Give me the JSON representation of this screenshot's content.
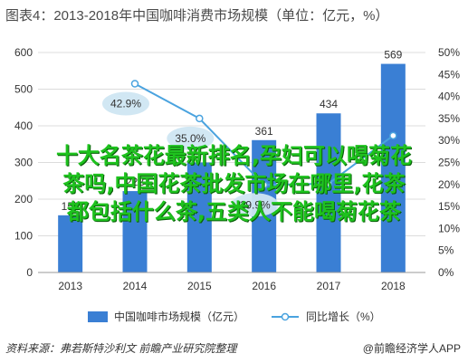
{
  "title": "图表4：2013-2018年中国咖啡消费市场规模（单位：亿元，%）",
  "chart_data": {
    "type": "bar+line",
    "categories": [
      "2013",
      "2014",
      "2015",
      "2016",
      "2017",
      "2018"
    ],
    "series": [
      {
        "name": "中国咖啡市场规模（亿元）",
        "type": "bar",
        "axis": "left",
        "values": [
          156,
          222,
          300,
          361,
          434,
          569
        ],
        "labels": [
          "156",
          "222",
          "",
          "361",
          "434",
          "569"
        ],
        "color": "#3a7fd4"
      },
      {
        "name": "同比增长（%）",
        "type": "line",
        "axis": "right",
        "values": [
          null,
          42.9,
          35.0,
          19.9,
          20.2,
          31.1
        ],
        "labels": [
          "",
          "42.9%",
          "35.0%",
          "19.9%",
          "",
          ""
        ],
        "color": "#4aa3df"
      }
    ],
    "y_left": {
      "min": 0,
      "max": 600,
      "ticks": [
        "0",
        "100",
        "200",
        "300",
        "400",
        "500",
        "600"
      ]
    },
    "y_right": {
      "min": 0,
      "max": 50,
      "ticks": [
        "0%",
        "5%",
        "10%",
        "15%",
        "20%",
        "25%",
        "30%",
        "35%",
        "40%",
        "45%",
        "50%"
      ]
    },
    "grid": true,
    "legend_position": "bottom"
  },
  "footer": {
    "source": "资料来源：弗若斯特沙利文 前瞻产业研究院整理",
    "brand": "@前瞻经济学人APP"
  },
  "overlay": {
    "lines": [
      "十大名茶花最新排名,孕妇可以喝菊花",
      "茶吗,中国花茶批发市场在哪里,花茶",
      "都包括什么茶,五类人不能喝菊花茶"
    ]
  }
}
